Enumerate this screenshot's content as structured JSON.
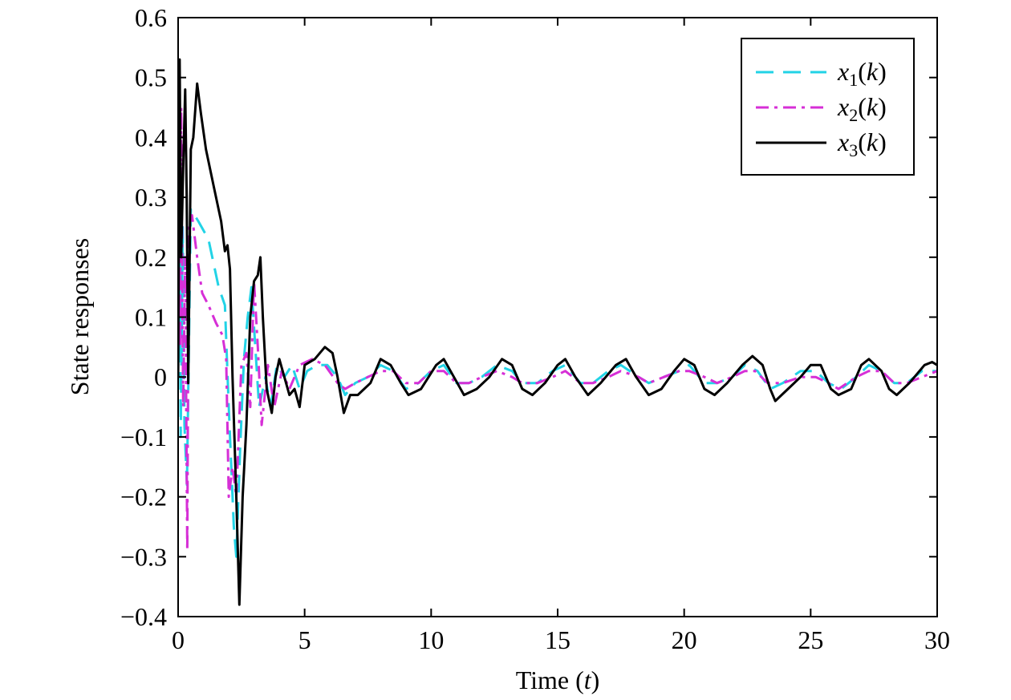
{
  "chart_data": {
    "type": "line",
    "title": "",
    "xlabel": "Time (t)",
    "xlabel_parts": {
      "prefix": "Time (",
      "var": "t",
      "suffix": ")"
    },
    "ylabel": "State responses",
    "xlim": [
      0,
      30
    ],
    "ylim": [
      -0.4,
      0.6
    ],
    "xticks": [
      0,
      5,
      10,
      15,
      20,
      25,
      30
    ],
    "xtick_labels": [
      "0",
      "5",
      "10",
      "15",
      "20",
      "25",
      "30"
    ],
    "yticks": [
      -0.4,
      -0.3,
      -0.2,
      -0.1,
      0,
      0.1,
      0.2,
      0.3,
      0.4,
      0.5,
      0.6
    ],
    "ytick_labels": [
      "−0.4",
      "−0.3",
      "−0.2",
      "−0.1",
      "0",
      "0.1",
      "0.2",
      "0.3",
      "0.4",
      "0.5",
      "0.6"
    ],
    "grid": false,
    "legend_position": "top-right",
    "series": [
      {
        "name": "x1(k)",
        "legend": {
          "base": "x",
          "sub": "1",
          "arg": "k"
        },
        "color": "#22d3e6",
        "style": "dashed",
        "points": [
          [
            0,
            0.0
          ],
          [
            0.05,
            0.3
          ],
          [
            0.1,
            -0.1
          ],
          [
            0.18,
            0.25
          ],
          [
            0.25,
            -0.08
          ],
          [
            0.35,
            -0.18
          ],
          [
            0.5,
            0.28
          ],
          [
            0.8,
            0.26
          ],
          [
            1.2,
            0.23
          ],
          [
            1.6,
            0.15
          ],
          [
            1.85,
            0.12
          ],
          [
            2.0,
            -0.05
          ],
          [
            2.2,
            -0.25
          ],
          [
            2.3,
            -0.3
          ],
          [
            2.45,
            -0.12
          ],
          [
            2.6,
            0.03
          ],
          [
            2.75,
            0.1
          ],
          [
            2.9,
            0.15
          ],
          [
            3.05,
            0.05
          ],
          [
            3.2,
            -0.05
          ],
          [
            3.45,
            0.0
          ],
          [
            3.65,
            -0.05
          ],
          [
            3.9,
            0.02
          ],
          [
            4.2,
            0.0
          ],
          [
            4.5,
            0.02
          ],
          [
            4.8,
            -0.02
          ],
          [
            5.1,
            0.01
          ],
          [
            5.5,
            0.02
          ],
          [
            5.9,
            0.02
          ],
          [
            6.3,
            0.0
          ],
          [
            6.6,
            -0.03
          ],
          [
            7.0,
            -0.01
          ],
          [
            7.5,
            0.0
          ],
          [
            8.0,
            0.02
          ],
          [
            8.5,
            0.01
          ],
          [
            9.0,
            -0.02
          ],
          [
            9.5,
            -0.01
          ],
          [
            10.0,
            0.01
          ],
          [
            10.5,
            0.02
          ],
          [
            11.0,
            -0.01
          ],
          [
            11.5,
            -0.01
          ],
          [
            12.0,
            0.0
          ],
          [
            12.6,
            0.02
          ],
          [
            13.2,
            0.01
          ],
          [
            13.6,
            -0.01
          ],
          [
            14.2,
            -0.01
          ],
          [
            14.8,
            0.01
          ],
          [
            15.3,
            0.02
          ],
          [
            15.9,
            -0.01
          ],
          [
            16.4,
            -0.01
          ],
          [
            17.0,
            0.01
          ],
          [
            17.5,
            0.02
          ],
          [
            18.2,
            0.0
          ],
          [
            18.6,
            -0.01
          ],
          [
            19.2,
            0.0
          ],
          [
            19.8,
            0.01
          ],
          [
            20.2,
            0.02
          ],
          [
            20.8,
            -0.01
          ],
          [
            21.3,
            -0.01
          ],
          [
            21.9,
            0.0
          ],
          [
            22.4,
            0.02
          ],
          [
            22.9,
            0.01
          ],
          [
            23.4,
            -0.02
          ],
          [
            23.9,
            -0.01
          ],
          [
            24.6,
            0.01
          ],
          [
            25.2,
            0.01
          ],
          [
            25.7,
            -0.01
          ],
          [
            26.2,
            -0.02
          ],
          [
            26.8,
            0.0
          ],
          [
            27.3,
            0.02
          ],
          [
            27.8,
            0.01
          ],
          [
            28.3,
            -0.01
          ],
          [
            28.8,
            -0.01
          ],
          [
            29.4,
            0.01
          ],
          [
            30.0,
            0.01
          ]
        ]
      },
      {
        "name": "x2(k)",
        "legend": {
          "base": "x",
          "sub": "2",
          "arg": "k"
        },
        "color": "#d62fd6",
        "style": "dashdot",
        "points": [
          [
            0,
            0.0
          ],
          [
            0.04,
            0.5
          ],
          [
            0.08,
            0.05
          ],
          [
            0.12,
            0.45
          ],
          [
            0.2,
            -0.05
          ],
          [
            0.28,
            0.2
          ],
          [
            0.36,
            -0.29
          ],
          [
            0.42,
            0.25
          ],
          [
            0.55,
            0.27
          ],
          [
            0.75,
            0.2
          ],
          [
            0.95,
            0.14
          ],
          [
            1.2,
            0.12
          ],
          [
            1.5,
            0.09
          ],
          [
            1.75,
            0.07
          ],
          [
            1.9,
            0.03
          ],
          [
            2.0,
            -0.2
          ],
          [
            2.15,
            -0.15
          ],
          [
            2.3,
            -0.2
          ],
          [
            2.5,
            0.02
          ],
          [
            2.7,
            0.04
          ],
          [
            2.85,
            -0.05
          ],
          [
            3.0,
            0.16
          ],
          [
            3.15,
            0.05
          ],
          [
            3.3,
            -0.08
          ],
          [
            3.55,
            0.02
          ],
          [
            3.8,
            -0.05
          ],
          [
            4.1,
            0.01
          ],
          [
            4.4,
            -0.02
          ],
          [
            4.8,
            0.02
          ],
          [
            5.3,
            0.03
          ],
          [
            5.8,
            0.02
          ],
          [
            6.3,
            -0.01
          ],
          [
            6.6,
            -0.02
          ],
          [
            7.0,
            -0.01
          ],
          [
            7.5,
            0.0
          ],
          [
            8.0,
            0.01
          ],
          [
            8.5,
            0.01
          ],
          [
            9.0,
            -0.01
          ],
          [
            9.5,
            -0.01
          ],
          [
            10.0,
            0.01
          ],
          [
            10.5,
            0.01
          ],
          [
            11.0,
            -0.01
          ],
          [
            11.5,
            -0.01
          ],
          [
            12.0,
            0.0
          ],
          [
            12.6,
            0.01
          ],
          [
            13.2,
            0.0
          ],
          [
            13.6,
            -0.01
          ],
          [
            14.2,
            -0.01
          ],
          [
            14.8,
            0.0
          ],
          [
            15.3,
            0.01
          ],
          [
            15.9,
            -0.01
          ],
          [
            16.4,
            -0.01
          ],
          [
            17.0,
            0.0
          ],
          [
            17.5,
            0.01
          ],
          [
            18.2,
            0.0
          ],
          [
            18.6,
            -0.01
          ],
          [
            19.2,
            0.0
          ],
          [
            19.8,
            0.01
          ],
          [
            20.2,
            0.01
          ],
          [
            20.8,
            0.0
          ],
          [
            21.3,
            -0.01
          ],
          [
            21.9,
            0.0
          ],
          [
            22.4,
            0.01
          ],
          [
            22.8,
            0.01
          ],
          [
            23.3,
            -0.01
          ],
          [
            23.9,
            -0.01
          ],
          [
            24.6,
            0.0
          ],
          [
            25.2,
            0.0
          ],
          [
            25.7,
            -0.01
          ],
          [
            26.1,
            -0.02
          ],
          [
            26.8,
            0.0
          ],
          [
            27.3,
            0.01
          ],
          [
            27.8,
            0.01
          ],
          [
            28.3,
            -0.01
          ],
          [
            28.8,
            -0.01
          ],
          [
            29.4,
            0.0
          ],
          [
            30.0,
            0.01
          ]
        ]
      },
      {
        "name": "x3(k)",
        "legend": {
          "base": "x",
          "sub": "3",
          "arg": "k"
        },
        "color": "#000000",
        "style": "solid",
        "points": [
          [
            0,
            0.0
          ],
          [
            0.06,
            0.53
          ],
          [
            0.12,
            0.2
          ],
          [
            0.2,
            0.35
          ],
          [
            0.28,
            0.48
          ],
          [
            0.34,
            0.3
          ],
          [
            0.4,
            -0.01
          ],
          [
            0.5,
            0.38
          ],
          [
            0.6,
            0.4
          ],
          [
            0.75,
            0.49
          ],
          [
            0.9,
            0.44
          ],
          [
            1.1,
            0.38
          ],
          [
            1.4,
            0.32
          ],
          [
            1.7,
            0.26
          ],
          [
            1.85,
            0.21
          ],
          [
            1.95,
            0.22
          ],
          [
            2.05,
            0.18
          ],
          [
            2.15,
            0.0
          ],
          [
            2.3,
            -0.2
          ],
          [
            2.42,
            -0.38
          ],
          [
            2.55,
            -0.2
          ],
          [
            2.7,
            -0.08
          ],
          [
            2.85,
            0.1
          ],
          [
            3.0,
            0.16
          ],
          [
            3.15,
            0.17
          ],
          [
            3.25,
            0.2
          ],
          [
            3.35,
            0.1
          ],
          [
            3.5,
            -0.02
          ],
          [
            3.7,
            -0.06
          ],
          [
            3.85,
            0.0
          ],
          [
            4.0,
            0.03
          ],
          [
            4.2,
            0.0
          ],
          [
            4.4,
            -0.03
          ],
          [
            4.6,
            -0.02
          ],
          [
            4.8,
            -0.05
          ],
          [
            5.0,
            0.02
          ],
          [
            5.4,
            0.03
          ],
          [
            5.8,
            0.05
          ],
          [
            6.1,
            0.04
          ],
          [
            6.3,
            0.0
          ],
          [
            6.55,
            -0.06
          ],
          [
            6.8,
            -0.03
          ],
          [
            7.1,
            -0.03
          ],
          [
            7.6,
            -0.01
          ],
          [
            8.0,
            0.03
          ],
          [
            8.4,
            0.02
          ],
          [
            8.8,
            -0.01
          ],
          [
            9.1,
            -0.03
          ],
          [
            9.6,
            -0.02
          ],
          [
            10.2,
            0.02
          ],
          [
            10.5,
            0.03
          ],
          [
            10.9,
            0.0
          ],
          [
            11.3,
            -0.03
          ],
          [
            11.8,
            -0.02
          ],
          [
            12.3,
            0.0
          ],
          [
            12.8,
            0.03
          ],
          [
            13.2,
            0.02
          ],
          [
            13.6,
            -0.02
          ],
          [
            14.0,
            -0.03
          ],
          [
            14.5,
            -0.01
          ],
          [
            15.0,
            0.02
          ],
          [
            15.3,
            0.03
          ],
          [
            15.7,
            0.0
          ],
          [
            16.2,
            -0.03
          ],
          [
            16.7,
            -0.01
          ],
          [
            17.3,
            0.02
          ],
          [
            17.7,
            0.03
          ],
          [
            18.1,
            0.0
          ],
          [
            18.6,
            -0.03
          ],
          [
            19.1,
            -0.02
          ],
          [
            19.6,
            0.01
          ],
          [
            20.0,
            0.03
          ],
          [
            20.4,
            0.02
          ],
          [
            20.8,
            -0.02
          ],
          [
            21.2,
            -0.03
          ],
          [
            21.7,
            -0.01
          ],
          [
            22.3,
            0.02
          ],
          [
            22.7,
            0.035
          ],
          [
            23.1,
            0.02
          ],
          [
            23.4,
            -0.02
          ],
          [
            23.6,
            -0.04
          ],
          [
            24.1,
            -0.02
          ],
          [
            24.6,
            0.0
          ],
          [
            25.0,
            0.02
          ],
          [
            25.4,
            0.02
          ],
          [
            25.8,
            -0.02
          ],
          [
            26.1,
            -0.03
          ],
          [
            26.6,
            -0.02
          ],
          [
            27.0,
            0.02
          ],
          [
            27.3,
            0.03
          ],
          [
            27.8,
            0.01
          ],
          [
            28.1,
            -0.02
          ],
          [
            28.4,
            -0.03
          ],
          [
            28.9,
            -0.01
          ],
          [
            29.5,
            0.02
          ],
          [
            29.8,
            0.025
          ],
          [
            30.0,
            0.02
          ]
        ]
      }
    ]
  }
}
